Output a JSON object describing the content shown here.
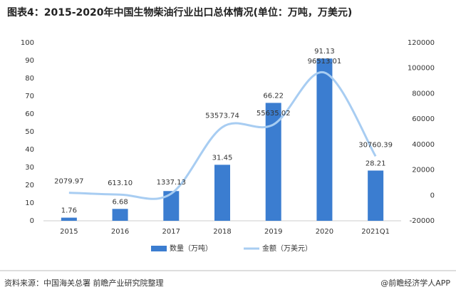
{
  "chart_data": {
    "type": "bar-line",
    "title": "图表4：2015-2020年中国生物柴油行业出口总体情况(单位：万吨，万美元)",
    "categories": [
      "2015",
      "2016",
      "2017",
      "2018",
      "2019",
      "2020",
      "2021Q1"
    ],
    "series": [
      {
        "name": "数量（万吨）",
        "color": "#3b7dd0",
        "type": "bar",
        "axis": "y",
        "values": [
          1.76,
          6.68,
          16.7,
          31.45,
          66.22,
          91.13,
          28.21
        ],
        "value_labels": [
          "1.76",
          "6.68",
          null,
          "31.45",
          "66.22",
          "91.13",
          "28.21"
        ]
      },
      {
        "name": "金额（万美元）",
        "color": "#a8cdf2",
        "type": "line",
        "axis": "y2",
        "values": [
          2079.97,
          613.1,
          1337.13,
          53573.74,
          55635.02,
          96513.01,
          30760.39
        ],
        "value_labels": [
          "2079.97",
          "613.10",
          "1337.13",
          "53573.74",
          "55635.02",
          "96513.01",
          "30760.39"
        ]
      }
    ],
    "ylim": [
      0,
      100
    ],
    "yticks": [
      0,
      10,
      20,
      30,
      40,
      50,
      60,
      70,
      80,
      90,
      100
    ],
    "y2lim": [
      -20000,
      120000
    ],
    "y2ticks": [
      -20000,
      0,
      20000,
      40000,
      60000,
      80000,
      100000,
      120000
    ],
    "source": "资料来源：中国海关总署 前瞻产业研究院整理",
    "brand": "@前瞻经济学人APP"
  }
}
